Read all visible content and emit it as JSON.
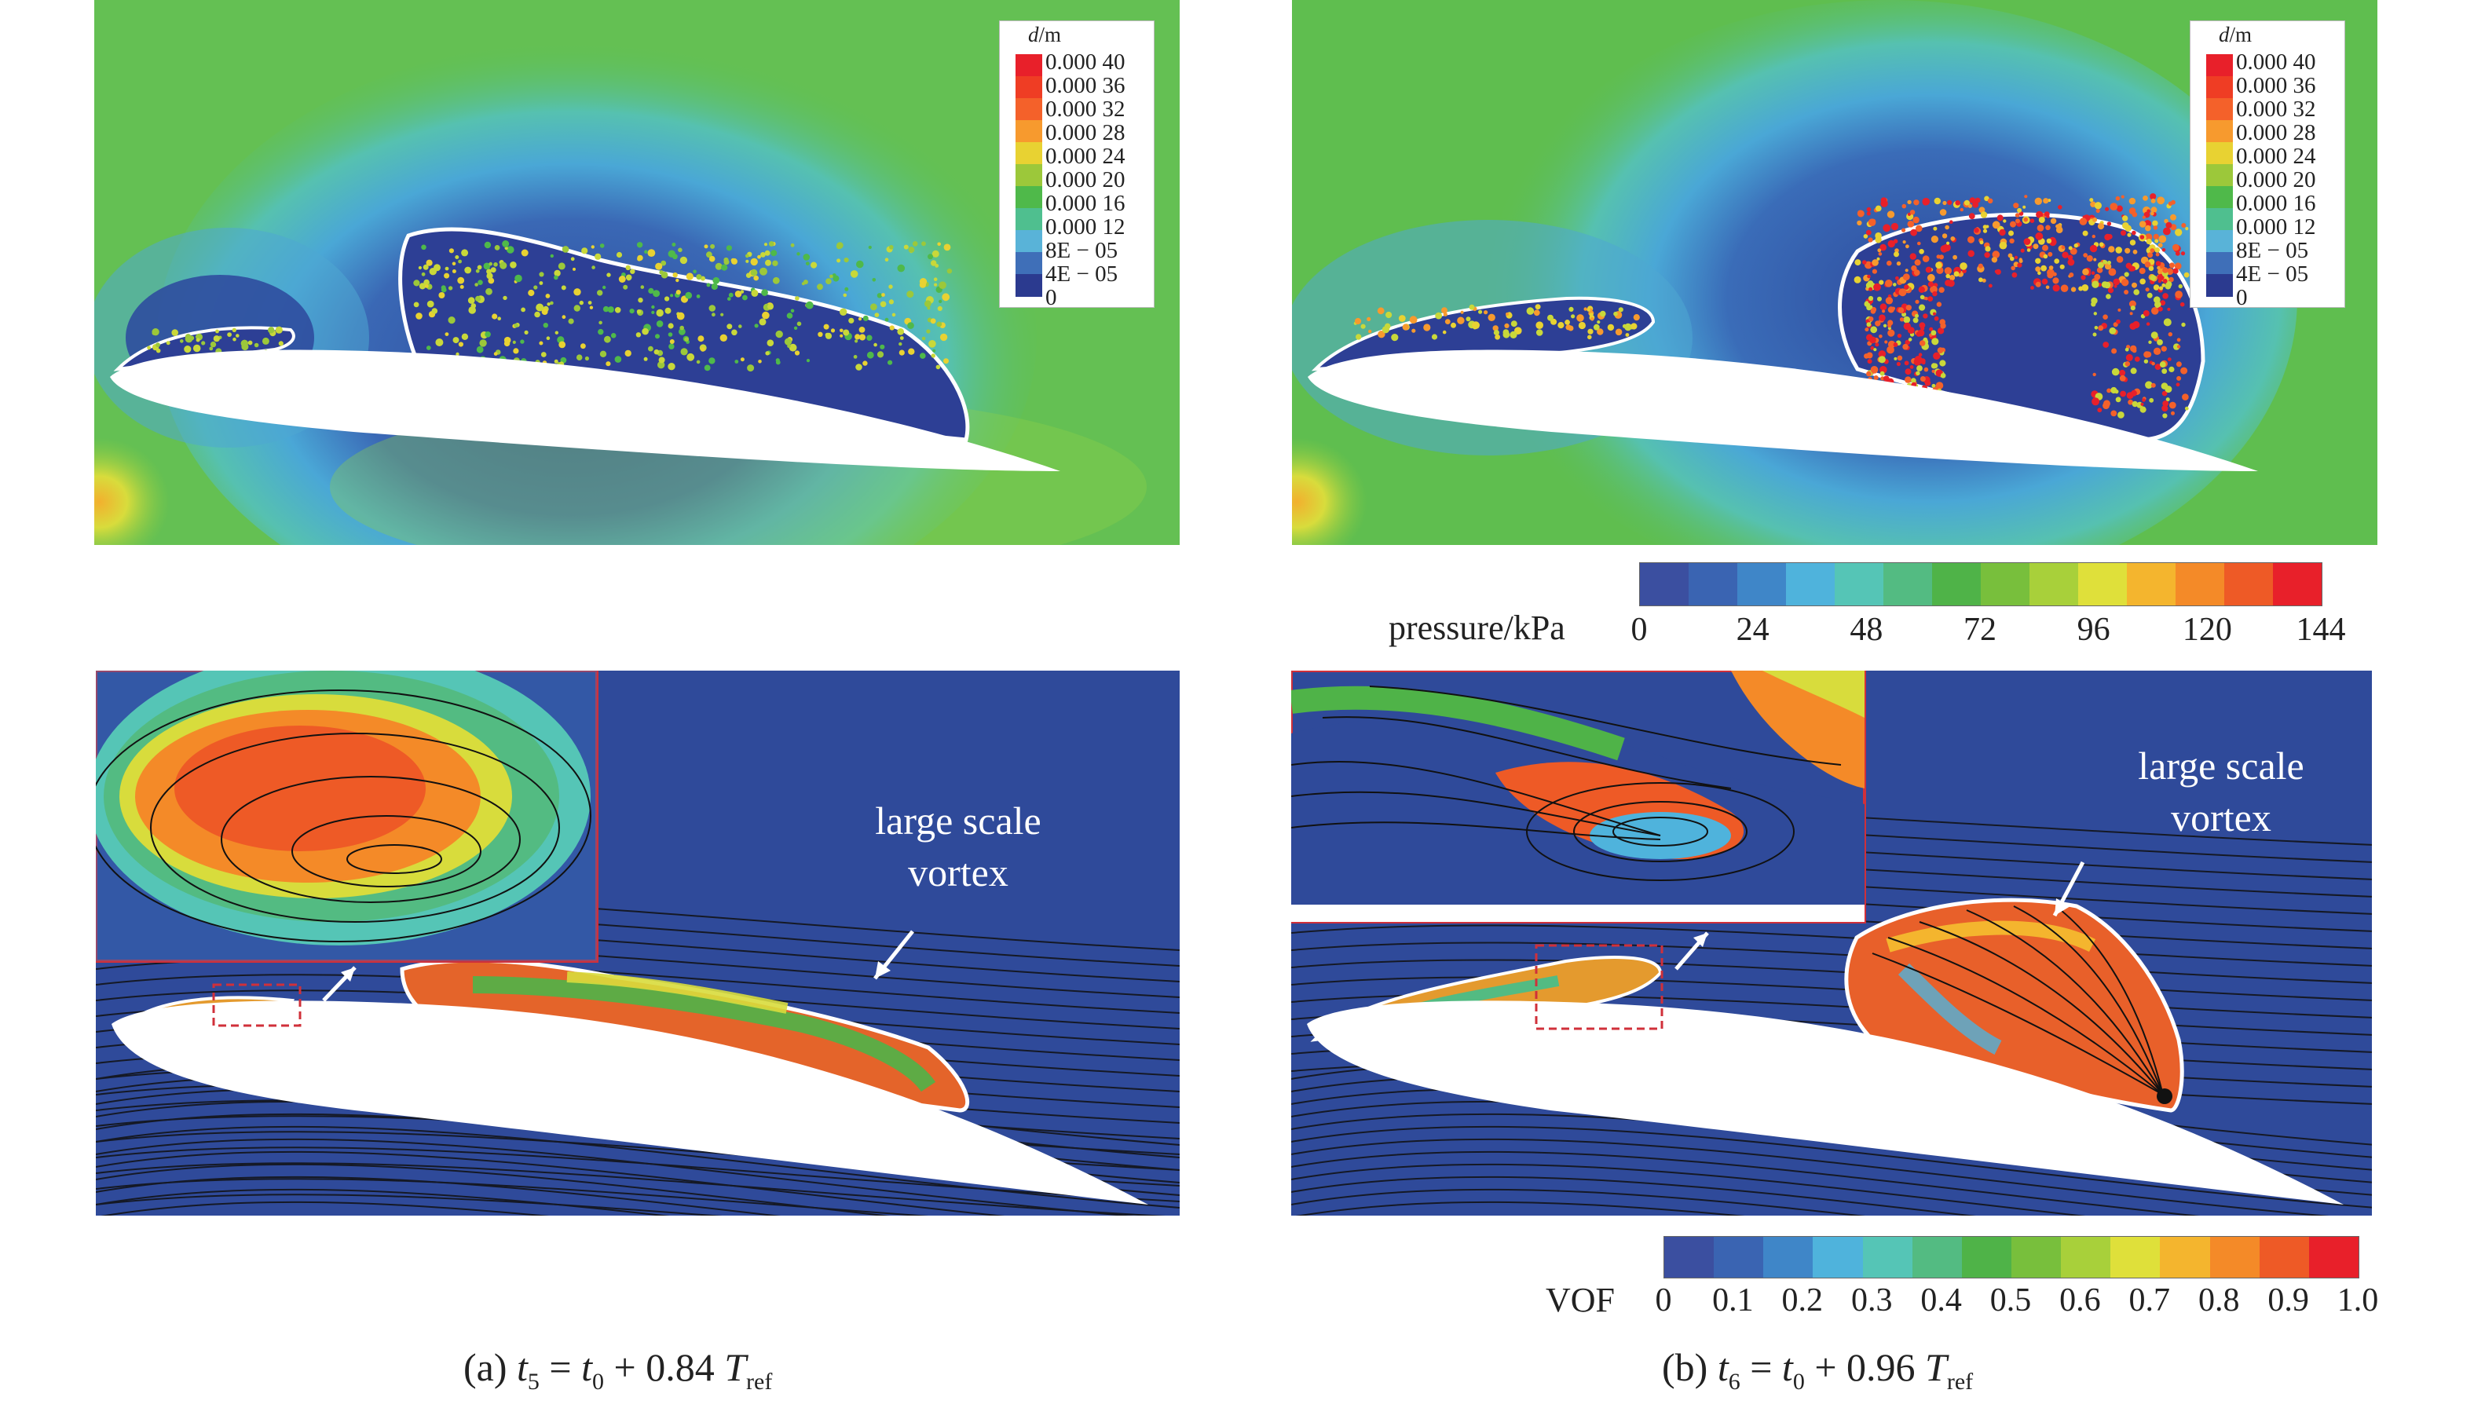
{
  "panel_a": {
    "legend": {
      "title": "d",
      "unit": "/m",
      "labels": [
        "0.000 40",
        "0.000 36",
        "0.000 32",
        "0.000 28",
        "0.000 24",
        "0.000 20",
        "0.000 16",
        "0.000 12",
        "8E − 05",
        "4E − 05",
        "0"
      ],
      "colors": [
        "#e8202a",
        "#ef3d24",
        "#f4612a",
        "#f79a2e",
        "#e8d232",
        "#9cc83a",
        "#4fb94a",
        "#4fbf8f",
        "#59b3d8",
        "#3f6fb8",
        "#2b3a8f"
      ]
    },
    "annotation": {
      "line1": "large scale",
      "line2": "vortex"
    },
    "caption": {
      "prefix": "(a) ",
      "t": "t",
      "t_sub": "5",
      "eq": " = ",
      "t0": "t",
      "t0_sub": "0",
      "rest": " + 0.84 ",
      "T": "T",
      "T_sub": "ref"
    }
  },
  "panel_b": {
    "legend": {
      "title": "d",
      "unit": "/m",
      "labels": [
        "0.000 40",
        "0.000 36",
        "0.000 32",
        "0.000 28",
        "0.000 24",
        "0.000 20",
        "0.000 16",
        "0.000 12",
        "8E − 05",
        "4E − 05",
        "0"
      ],
      "colors": [
        "#e8202a",
        "#ef3d24",
        "#f4612a",
        "#f79a2e",
        "#e8d232",
        "#9cc83a",
        "#4fb94a",
        "#4fbf8f",
        "#59b3d8",
        "#3f6fb8",
        "#2b3a8f"
      ]
    },
    "annotation": {
      "line1": "large scale",
      "line2": "vortex"
    },
    "caption": {
      "prefix": "(b) ",
      "t": "t",
      "t_sub": "6",
      "eq": " = ",
      "t0": "t",
      "t0_sub": "0",
      "rest": " + 0.96 ",
      "T": "T",
      "T_sub": "ref"
    }
  },
  "pressure_colorbar": {
    "label": "pressure/kPa",
    "ticks": [
      "0",
      "24",
      "48",
      "72",
      "96",
      "120",
      "144"
    ],
    "colors": [
      "#3b4fa0",
      "#3a64b2",
      "#3f86c8",
      "#4fb3dc",
      "#55c5b6",
      "#53bb82",
      "#4fb348",
      "#78bf3c",
      "#a8d03a",
      "#dfe03a",
      "#f4b52e",
      "#f48a28",
      "#ee5a26",
      "#e8202a"
    ]
  },
  "vof_colorbar": {
    "label": "VOF",
    "ticks": [
      "0",
      "0.1",
      "0.2",
      "0.3",
      "0.4",
      "0.5",
      "0.6",
      "0.7",
      "0.8",
      "0.9",
      "1.0"
    ],
    "colors": [
      "#3b4fa0",
      "#3a64b2",
      "#3f86c8",
      "#4fb3dc",
      "#55c5b6",
      "#53bb82",
      "#4fb348",
      "#78bf3c",
      "#a8d03a",
      "#dfe03a",
      "#f4b52e",
      "#f48a28",
      "#ee5a26",
      "#e8202a"
    ]
  },
  "colors": {
    "background_field": "#5fbe4f",
    "vof_background": "#2f4a9a",
    "airfoil": "#ffffff",
    "cavity_outline": "#ffffff",
    "zoom_box": "#d0303a"
  }
}
